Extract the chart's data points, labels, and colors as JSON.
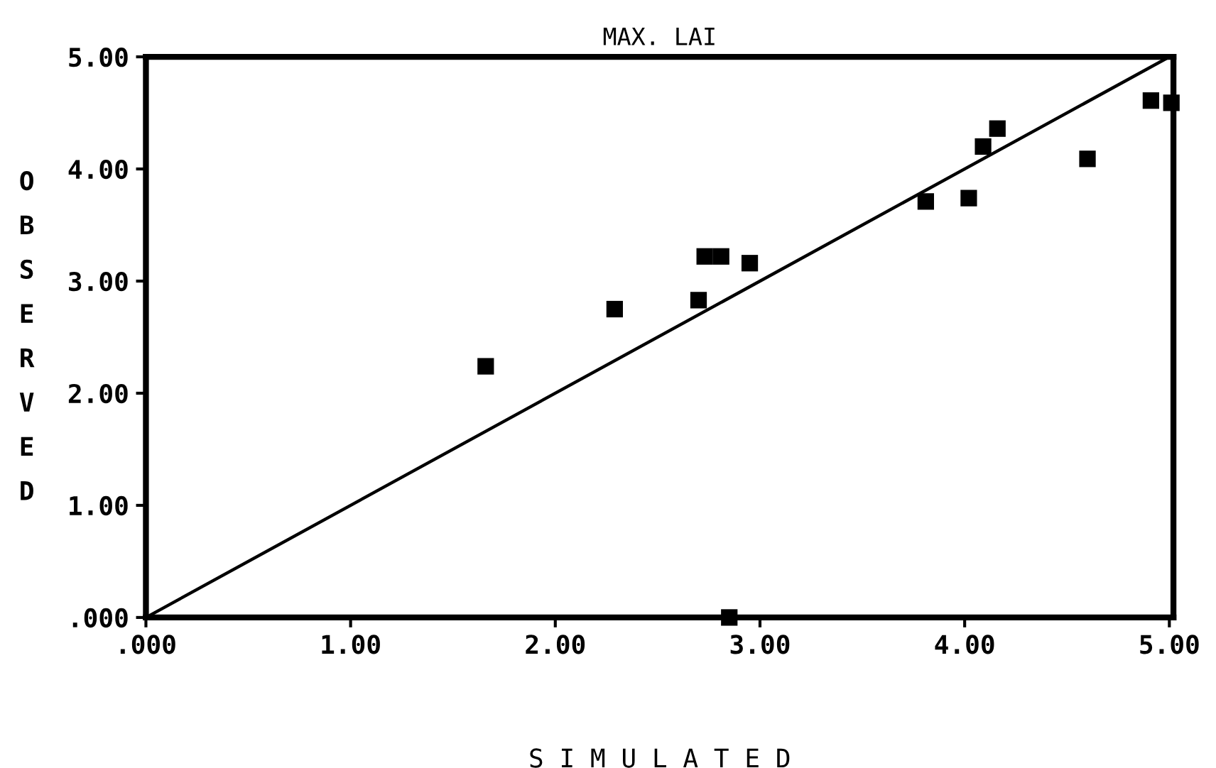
{
  "chart_data": {
    "type": "scatter",
    "title": "MAX. LAI",
    "xlabel": "S I M U L A T E D",
    "ylabel": "OBSERVED",
    "series": [
      {
        "color": "#000000",
        "marker": "square",
        "x": [
          1.66,
          2.29,
          2.7,
          2.73,
          2.81,
          2.95,
          3.81,
          4.02,
          4.09,
          4.16,
          4.6,
          4.91,
          5.01,
          2.85
        ],
        "values": [
          2.24,
          2.75,
          2.83,
          3.22,
          3.22,
          3.16,
          3.71,
          3.74,
          4.2,
          4.36,
          4.09,
          4.61,
          4.59,
          0
        ]
      },
      {
        "type": "line",
        "color": "#000000",
        "marker": "none",
        "line_style": "solid",
        "x": [
          0,
          5
        ],
        "values": [
          0,
          5
        ]
      }
    ],
    "xlim": [
      0,
      5.02
    ],
    "ylim": [
      0,
      5
    ],
    "xticks": [
      {
        "value": 0,
        "label": ".000"
      },
      {
        "value": 1,
        "label": "1.00"
      },
      {
        "value": 2,
        "label": "2.00"
      },
      {
        "value": 3,
        "label": "3.00"
      },
      {
        "value": 4,
        "label": "4.00"
      },
      {
        "value": 5,
        "label": "5.00"
      }
    ],
    "yticks": [
      {
        "value": 0,
        "label": ".000"
      },
      {
        "value": 1,
        "label": "1.00"
      },
      {
        "value": 2,
        "label": "2.00"
      },
      {
        "value": 3,
        "label": "3.00"
      },
      {
        "value": 4,
        "label": "4.00"
      },
      {
        "value": 5,
        "label": "5.00"
      }
    ],
    "grid": false,
    "legend": false
  }
}
